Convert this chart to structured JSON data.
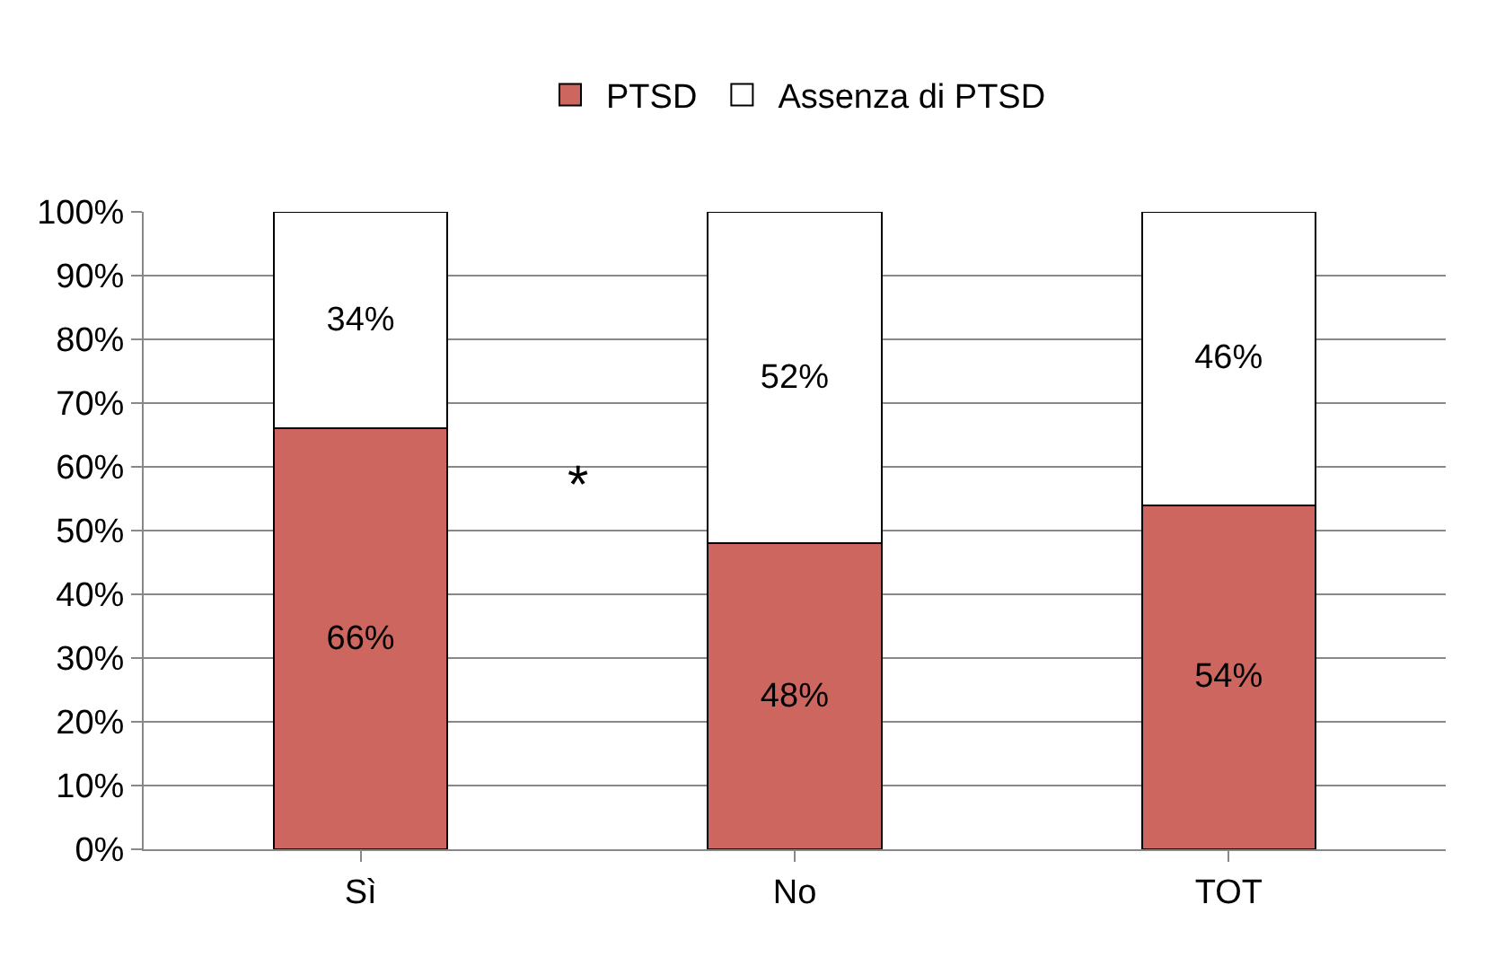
{
  "chart_data": {
    "type": "bar",
    "stacked": true,
    "categories": [
      "Sì",
      "No",
      "TOT"
    ],
    "series": [
      {
        "name": "PTSD",
        "color": "#cd665e",
        "values": [
          66,
          48,
          54
        ],
        "value_labels": [
          "66%",
          "48%",
          "54%"
        ]
      },
      {
        "name": "Assenza di PTSD",
        "color": "#ffffff",
        "values": [
          34,
          52,
          46
        ],
        "value_labels": [
          "34%",
          "52%",
          "46%"
        ]
      }
    ],
    "ylim": [
      0,
      100
    ],
    "yticks": [
      {
        "value": 0,
        "label": "0%"
      },
      {
        "value": 10,
        "label": "10%"
      },
      {
        "value": 20,
        "label": "20%"
      },
      {
        "value": 30,
        "label": "30%"
      },
      {
        "value": 40,
        "label": "40%"
      },
      {
        "value": 50,
        "label": "50%"
      },
      {
        "value": 60,
        "label": "60%"
      },
      {
        "value": 70,
        "label": "70%"
      },
      {
        "value": 80,
        "label": "80%"
      },
      {
        "value": 90,
        "label": "90%"
      },
      {
        "value": 100,
        "label": "100%"
      }
    ],
    "grid": "y",
    "legend": "top",
    "annotations": [
      "*"
    ]
  }
}
